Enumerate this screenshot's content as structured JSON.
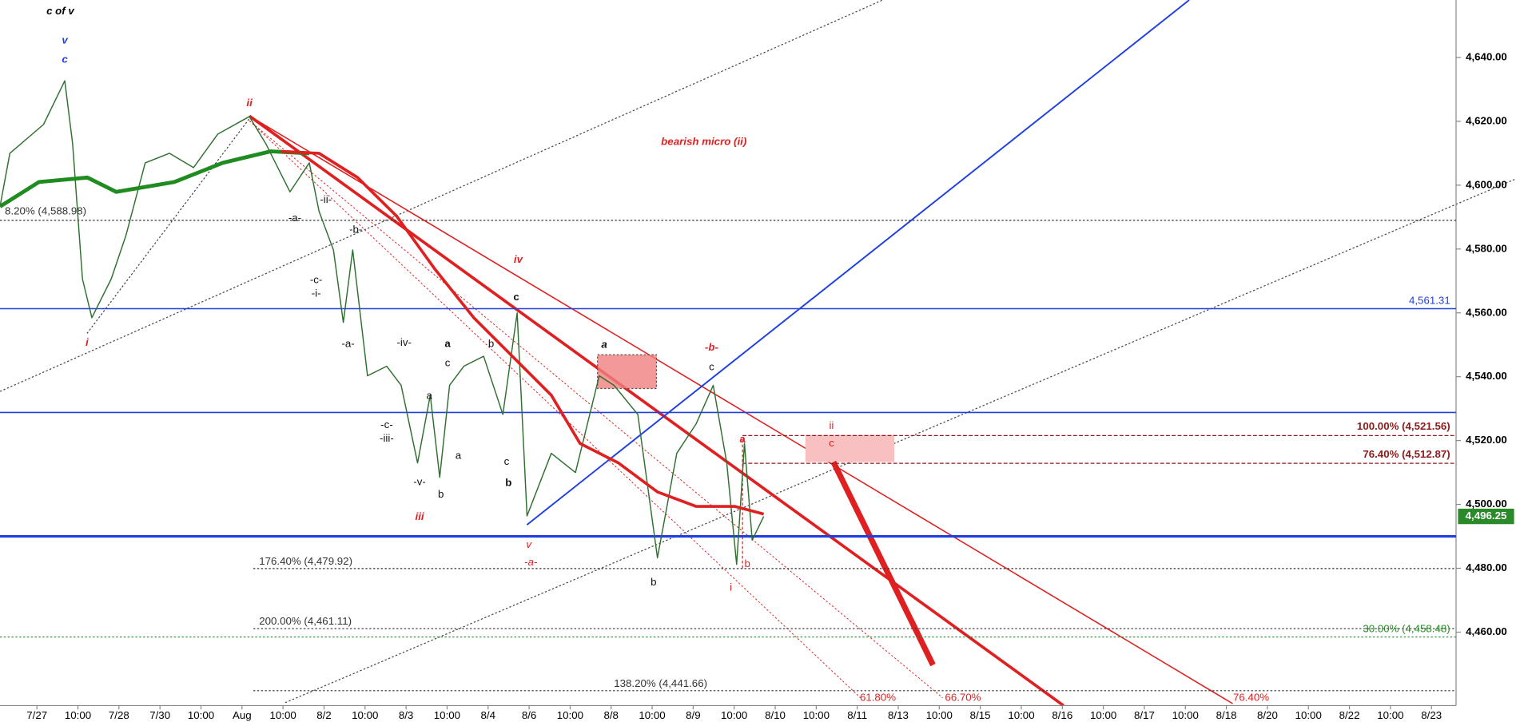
{
  "chart_data": {
    "type": "line",
    "title": "c of v",
    "xticks": [
      "7/27",
      "10:00",
      "7/28",
      "7/30",
      "10:00",
      "Aug",
      "10:00",
      "8/2",
      "10:00",
      "8/3",
      "10:00",
      "8/4",
      "8/6",
      "10:00",
      "8/8",
      "10:00",
      "8/9",
      "10:00",
      "8/10",
      "10:00",
      "8/11",
      "8/13",
      "10:00",
      "8/15",
      "10:00",
      "8/16",
      "10:00",
      "8/17",
      "10:00",
      "8/18",
      "8/20",
      "10:00",
      "8/22",
      "10:00",
      "8/23"
    ],
    "xlim": [
      -0.9,
      34.6
    ],
    "ylim": [
      4437,
      4658
    ],
    "yticks": [
      {
        "value": 4460,
        "label": "4,460.00"
      },
      {
        "value": 4480,
        "label": "4,480.00"
      },
      {
        "value": 4500,
        "label": "4,500.00"
      },
      {
        "value": 4520,
        "label": "4,520.00"
      },
      {
        "value": 4540,
        "label": "4,540.00"
      },
      {
        "value": 4560,
        "label": "4,560.00"
      },
      {
        "value": 4580,
        "label": "4,580.00"
      },
      {
        "value": 4600,
        "label": "4,600.00"
      },
      {
        "value": 4620,
        "label": "4,620.00"
      },
      {
        "value": 4640,
        "label": "4,640.00"
      }
    ],
    "series": [
      {
        "color": "#2f6f2f",
        "width": 1.2,
        "x": [
          -0.9,
          -0.66,
          0.16,
          0.68,
          0.87,
          1.11,
          1.34,
          1.81,
          2.17,
          2.64,
          3.23,
          3.82,
          4.41,
          5.18,
          5.58,
          6.17,
          6.64,
          6.88,
          7.23,
          7.47,
          7.7,
          8.06,
          8.53,
          8.88,
          9.28,
          9.59,
          9.82,
          10.06,
          10.41,
          10.89,
          11.36,
          11.71,
          11.95,
          12.54,
          13.13,
          13.71,
          14.07,
          14.65,
          15.13,
          15.6,
          16.07,
          16.49,
          16.82,
          17.06,
          17.25,
          17.44,
          17.72
        ],
        "values": [
          4593.3,
          4610,
          4619,
          4632.7,
          4613,
          4570.6,
          4558.5,
          4570.6,
          4584.2,
          4607,
          4610,
          4605.5,
          4616,
          4621.5,
          4613,
          4597.9,
          4607,
          4591.8,
          4579.7,
          4557,
          4579.7,
          4540.3,
          4543.3,
          4537.3,
          4513,
          4534.2,
          4508.5,
          4537.3,
          4543.3,
          4546.4,
          4528.2,
          4560,
          4496.4,
          4516,
          4510,
          4540.3,
          4537.3,
          4528.2,
          4483.3,
          4516,
          4525.2,
          4537.3,
          4513,
          4481.2,
          4519.1,
          4488.8,
          4496.25
        ]
      },
      {
        "color": "#1e8c1e",
        "width": 4,
        "x": [
          -0.9,
          0.05,
          1.23,
          1.93,
          3.35,
          4.53,
          5.7,
          6.64
        ],
        "values": [
          4593.3,
          4601,
          4602.4,
          4597.9,
          4601,
          4607,
          4610.6,
          4610
        ]
      },
      {
        "color": "#e02020",
        "width": 3,
        "x": [
          5.94,
          6.88,
          7.82,
          8.77,
          9.71,
          10.65,
          11.59,
          12.54,
          13.24,
          14.18,
          15.13,
          16.07,
          17.01,
          17.72
        ],
        "values": [
          4610.6,
          4610,
          4602.4,
          4590.3,
          4573.6,
          4558.5,
          4546.4,
          4534.2,
          4519.1,
          4513,
          4503.9,
          4499.4,
          4499.4,
          4497
        ]
      }
    ],
    "levels": [
      {
        "value": 4588.98,
        "label": "8.20% (4,588.98)",
        "color": "#333333",
        "style": "dotted"
      },
      {
        "value": 4561.31,
        "label": "4,561.31",
        "color": "#1f3fe0",
        "style": "solid"
      },
      {
        "value": 4528.8,
        "color": "#1f3fe0",
        "style": "solid"
      },
      {
        "value": 4521.56,
        "label": "100.00% (4,521.56)",
        "color": "#8b1a1a",
        "style": "dashed"
      },
      {
        "value": 4512.87,
        "label": "76.40% (4,512.87)",
        "color": "#8b1a1a",
        "style": "dashed"
      },
      {
        "value": 4490,
        "color": "#1f3fe0",
        "style": "thick"
      },
      {
        "value": 4479.92,
        "label": "176.40% (4,479.92)",
        "color": "#333333",
        "style": "dotted"
      },
      {
        "value": 4461.11,
        "label": "200.00% (4,461.11)",
        "color": "#333333",
        "style": "dotted"
      },
      {
        "value": 4458.48,
        "label": "30.00% (4,458.48)",
        "color": "#2a8a2a",
        "style": "dotted"
      },
      {
        "value": 4441.66,
        "label": "138.20% (4,441.66)",
        "color": "#333333",
        "style": "dotted"
      }
    ],
    "last": {
      "value": 4496.25,
      "label": "4,496.25",
      "color": "#2a8a2a"
    },
    "annotations": [
      "v",
      "c",
      "i",
      "ii",
      "bearish micro (ii)",
      "iv",
      "c",
      "-ii-",
      "-a-",
      "-b-",
      "-c-",
      "-i-",
      "-a-",
      "-iv-",
      "a",
      "b",
      "c",
      "a",
      "-c-",
      "-iii-",
      "a",
      "-v-",
      "b",
      "c",
      "b",
      "iii",
      "v",
      "-a-",
      "a",
      "-b-",
      "c",
      "b",
      "a",
      "b",
      "i",
      "ii",
      "c",
      "61.80%",
      "66.70%",
      "76.40%"
    ]
  }
}
